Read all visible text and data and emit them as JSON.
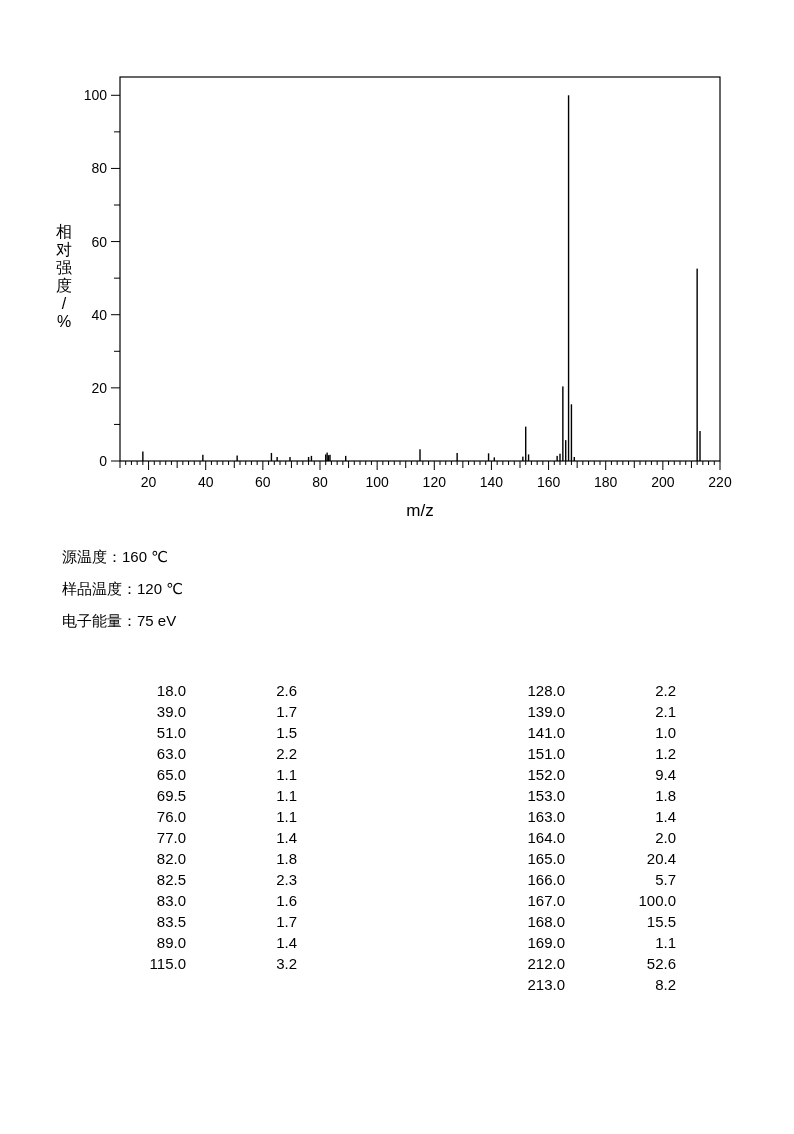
{
  "chart_data": [
    {
      "type": "bar",
      "xlabel": "m/z",
      "ylabel": "相对强度/%",
      "x": [
        18,
        39,
        51,
        63,
        65,
        69.5,
        76,
        77,
        82,
        82.5,
        83,
        83.5,
        89,
        115,
        128,
        139,
        141,
        151,
        152,
        153,
        163,
        164,
        165,
        166,
        167,
        168,
        169,
        212,
        213
      ],
      "series": [
        {
          "color": "#000000",
          "values": [
            2.6,
            1.7,
            1.5,
            2.2,
            1.1,
            1.1,
            1.1,
            1.4,
            1.8,
            2.3,
            1.6,
            1.7,
            1.4,
            3.2,
            2.2,
            2.1,
            1.0,
            1.2,
            9.4,
            1.8,
            1.4,
            2.0,
            20.4,
            5.7,
            100.0,
            15.5,
            1.1,
            52.6,
            8.2
          ]
        }
      ],
      "xlim": [
        10,
        220
      ],
      "xticks": [
        {
          "value": 10,
          "label": null
        },
        {
          "value": 12,
          "label": null
        },
        {
          "value": 14,
          "label": null
        },
        {
          "value": 16,
          "label": null
        },
        {
          "value": 18,
          "label": null
        },
        20,
        {
          "value": 22,
          "label": null
        },
        {
          "value": 24,
          "label": null
        },
        {
          "value": 26,
          "label": null
        },
        {
          "value": 28,
          "label": null
        },
        {
          "value": 30,
          "label": null
        },
        {
          "value": 32,
          "label": null
        },
        {
          "value": 34,
          "label": null
        },
        {
          "value": 36,
          "label": null
        },
        {
          "value": 38,
          "label": null
        },
        40,
        {
          "value": 42,
          "label": null
        },
        {
          "value": 44,
          "label": null
        },
        {
          "value": 46,
          "label": null
        },
        {
          "value": 48,
          "label": null
        },
        {
          "value": 50,
          "label": null
        },
        {
          "value": 52,
          "label": null
        },
        {
          "value": 54,
          "label": null
        },
        {
          "value": 56,
          "label": null
        },
        {
          "value": 58,
          "label": null
        },
        60,
        {
          "value": 62,
          "label": null
        },
        {
          "value": 64,
          "label": null
        },
        {
          "value": 66,
          "label": null
        },
        {
          "value": 68,
          "label": null
        },
        {
          "value": 70,
          "label": null
        },
        {
          "value": 72,
          "label": null
        },
        {
          "value": 74,
          "label": null
        },
        {
          "value": 76,
          "label": null
        },
        {
          "value": 78,
          "label": null
        },
        80,
        {
          "value": 82,
          "label": null
        },
        {
          "value": 84,
          "label": null
        },
        {
          "value": 86,
          "label": null
        },
        {
          "value": 88,
          "label": null
        },
        {
          "value": 90,
          "label": null
        },
        {
          "value": 92,
          "label": null
        },
        {
          "value": 94,
          "label": null
        },
        {
          "value": 96,
          "label": null
        },
        {
          "value": 98,
          "label": null
        },
        100,
        {
          "value": 102,
          "label": null
        },
        {
          "value": 104,
          "label": null
        },
        {
          "value": 106,
          "label": null
        },
        {
          "value": 108,
          "label": null
        },
        {
          "value": 110,
          "label": null
        },
        {
          "value": 112,
          "label": null
        },
        {
          "value": 114,
          "label": null
        },
        {
          "value": 116,
          "label": null
        },
        {
          "value": 118,
          "label": null
        },
        120,
        {
          "value": 122,
          "label": null
        },
        {
          "value": 124,
          "label": null
        },
        {
          "value": 126,
          "label": null
        },
        {
          "value": 128,
          "label": null
        },
        {
          "value": 130,
          "label": null
        },
        {
          "value": 132,
          "label": null
        },
        {
          "value": 134,
          "label": null
        },
        {
          "value": 136,
          "label": null
        },
        {
          "value": 138,
          "label": null
        },
        140,
        {
          "value": 142,
          "label": null
        },
        {
          "value": 144,
          "label": null
        },
        {
          "value": 146,
          "label": null
        },
        {
          "value": 148,
          "label": null
        },
        {
          "value": 150,
          "label": null
        },
        {
          "value": 152,
          "label": null
        },
        {
          "value": 154,
          "label": null
        },
        {
          "value": 156,
          "label": null
        },
        {
          "value": 158,
          "label": null
        },
        160,
        {
          "value": 162,
          "label": null
        },
        {
          "value": 164,
          "label": null
        },
        {
          "value": 166,
          "label": null
        },
        {
          "value": 168,
          "label": null
        },
        {
          "value": 170,
          "label": null
        },
        {
          "value": 172,
          "label": null
        },
        {
          "value": 174,
          "label": null
        },
        {
          "value": 176,
          "label": null
        },
        {
          "value": 178,
          "label": null
        },
        180,
        {
          "value": 182,
          "label": null
        },
        {
          "value": 184,
          "label": null
        },
        {
          "value": 186,
          "label": null
        },
        {
          "value": 188,
          "label": null
        },
        {
          "value": 190,
          "label": null
        },
        {
          "value": 192,
          "label": null
        },
        {
          "value": 194,
          "label": null
        },
        {
          "value": 196,
          "label": null
        },
        {
          "value": 198,
          "label": null
        },
        200,
        {
          "value": 202,
          "label": null
        },
        {
          "value": 204,
          "label": null
        },
        {
          "value": 206,
          "label": null
        },
        {
          "value": 208,
          "label": null
        },
        {
          "value": 210,
          "label": null
        },
        {
          "value": 212,
          "label": null
        },
        {
          "value": 214,
          "label": null
        },
        {
          "value": 216,
          "label": null
        },
        {
          "value": 218,
          "label": null
        },
        220
      ],
      "ylim": [
        0,
        105
      ],
      "yticks": [
        0,
        {
          "value": 10,
          "label": null
        },
        20,
        {
          "value": 30,
          "label": null
        },
        40,
        {
          "value": 50,
          "label": null
        },
        60,
        {
          "value": 70,
          "label": null
        },
        80,
        {
          "value": 90,
          "label": null
        },
        100
      ],
      "annotations": [
        "源温度：160 ℃",
        "样品温度：120 ℃",
        "电子能量：75 eV"
      ]
    },
    {
      "type": "other",
      "annotations": [
        "18.0",
        "2.6",
        "39.0",
        "1.7",
        "51.0",
        "1.5",
        "63.0",
        "2.2",
        "65.0",
        "1.1",
        "69.5",
        "1.1",
        "76.0",
        "1.1",
        "77.0",
        "1.4",
        "82.0",
        "1.8",
        "82.5",
        "2.3",
        "83.0",
        "1.6",
        "83.5",
        "1.7",
        "89.0",
        "1.4",
        "115.0",
        "3.2",
        "128.0",
        "2.2",
        "139.0",
        "2.1",
        "141.0",
        "1.0",
        "151.0",
        "1.2",
        "152.0",
        "9.4",
        "153.0",
        "1.8",
        "163.0",
        "1.4",
        "164.0",
        "2.0",
        "165.0",
        "20.4",
        "166.0",
        "5.7",
        "167.0",
        "100.0",
        "168.0",
        "15.5",
        "169.0",
        "1.1",
        "212.0",
        "52.6",
        "213.0",
        "8.2"
      ]
    }
  ]
}
